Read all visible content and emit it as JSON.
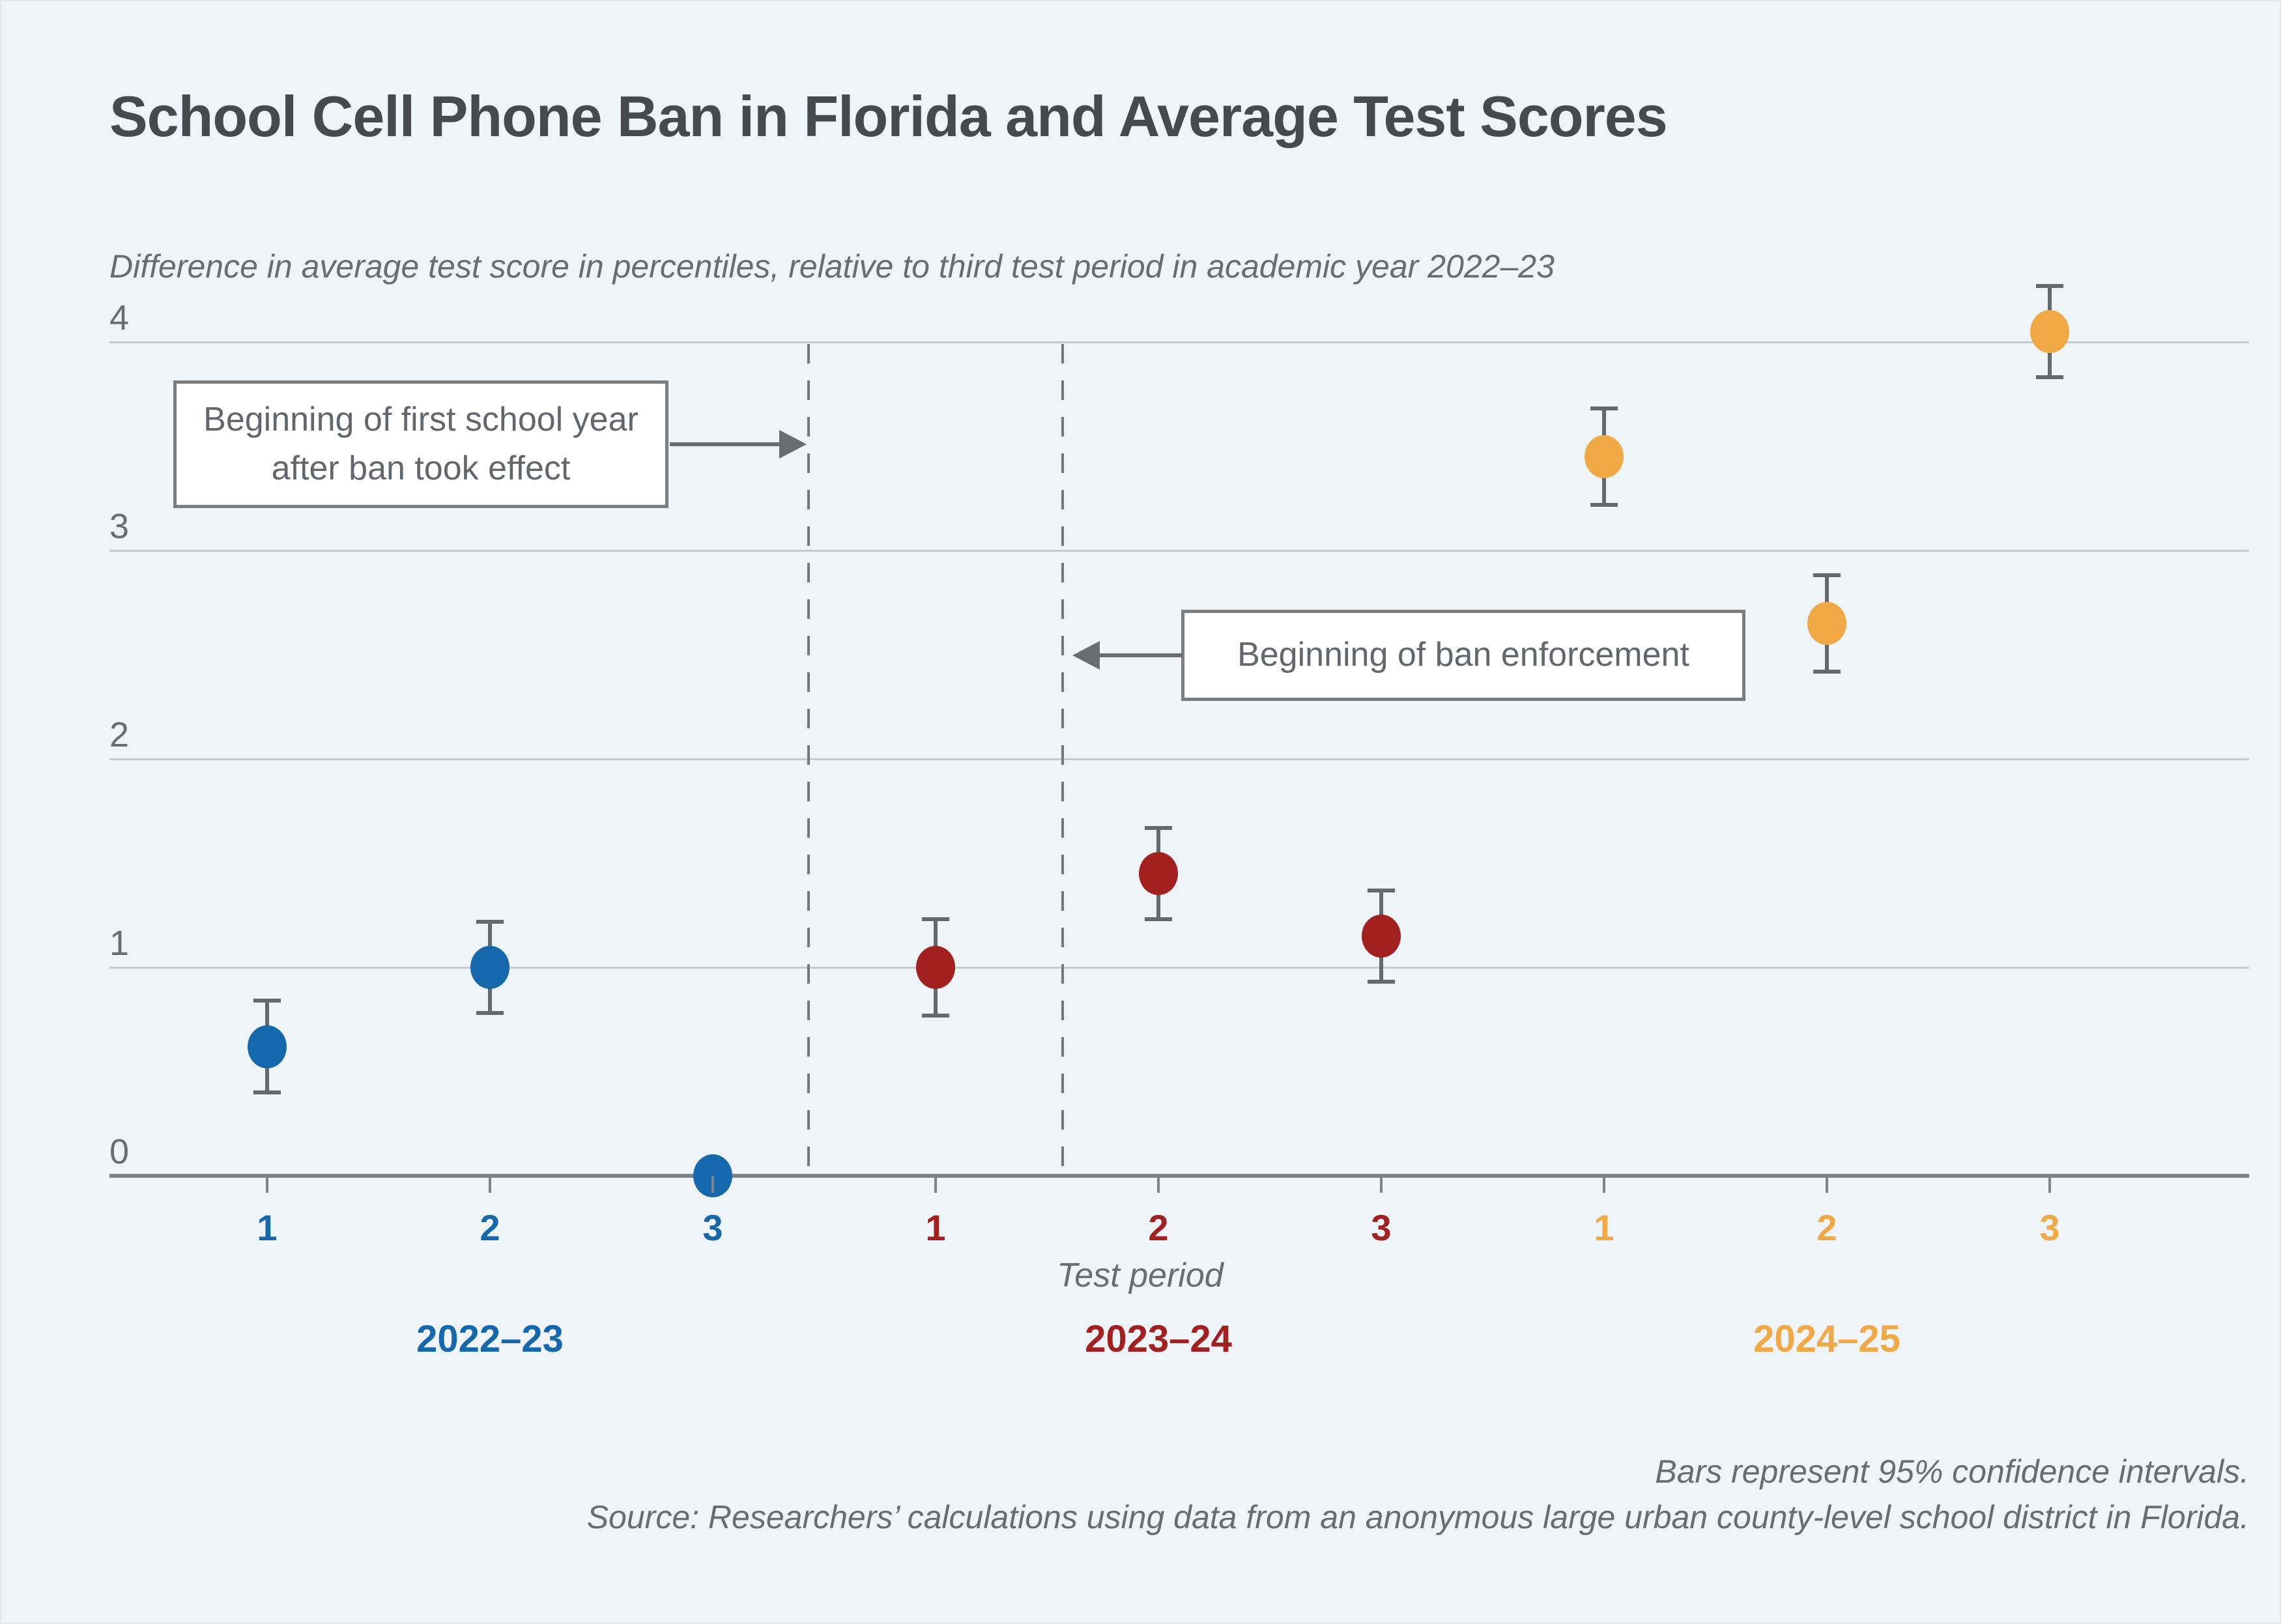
{
  "header": {
    "title": "School Cell Phone Ban in Florida and Average Test Scores",
    "subtitle": "Difference in average test score in percentiles, relative to third test period in academic year 2022–23"
  },
  "chart_data": {
    "type": "scatter",
    "title": "School Cell Phone Ban in Florida and Average Test Scores",
    "ylabel": "Difference in average test score in percentiles, relative to third test period in academic year 2022–23",
    "xlabel": "Test period",
    "ylim": [
      0,
      4
    ],
    "yticks": [
      0,
      1,
      2,
      3,
      4
    ],
    "grid": "horizontal gridlines at integer values",
    "categories": [
      "1",
      "2",
      "3",
      "1",
      "2",
      "3",
      "1",
      "2",
      "3"
    ],
    "series": [
      {
        "name": "2022–23",
        "color": "#1668ac",
        "x": [
          "1",
          "2",
          "3"
        ],
        "values": [
          0.62,
          1.0,
          0.0
        ],
        "ci_half_width": [
          0.22,
          0.22,
          null
        ]
      },
      {
        "name": "2023–24",
        "color": "#a32020",
        "x": [
          "1",
          "2",
          "3"
        ],
        "values": [
          1.0,
          1.45,
          1.15
        ],
        "ci_half_width": [
          0.23,
          0.22,
          0.22
        ]
      },
      {
        "name": "2024–25",
        "color": "#f0a944",
        "x": [
          "1",
          "2",
          "3"
        ],
        "values": [
          3.45,
          2.65,
          4.05
        ],
        "ci_half_width": [
          0.23,
          0.23,
          0.22
        ]
      }
    ],
    "events": [
      {
        "label": "Beginning of first school year after ban took effect",
        "x_slot": 2.43,
        "arrow": "right"
      },
      {
        "label": "Beginning of ban enforcement",
        "x_slot": 3.57,
        "arrow": "left"
      }
    ],
    "notes": [
      "Bars represent 95% confidence intervals.",
      "Source: Researchers’ calculations using data from an anonymous large urban county-level school district in Florida."
    ]
  }
}
